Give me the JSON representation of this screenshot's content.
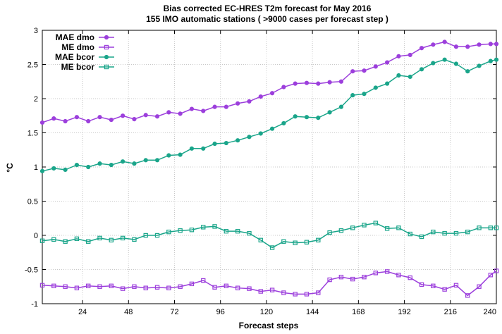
{
  "chart_data": {
    "type": "line",
    "title": "Bias corrected EC-HRES T2m forecast for May 2016",
    "subtitle": "155 IMO automatic stations ( >9000 cases per forecast step )",
    "xlabel": "Forecast steps",
    "ylabel": "°C",
    "xlim": [
      3,
      240
    ],
    "ylim": [
      -1,
      3
    ],
    "x_ticks": [
      24,
      48,
      72,
      96,
      120,
      144,
      168,
      192,
      216,
      240
    ],
    "y_ticks": [
      -1,
      -0.5,
      0,
      0.5,
      1,
      1.5,
      2,
      2.5,
      3
    ],
    "grid": true,
    "legend_position": "top-left",
    "x": [
      3,
      9,
      15,
      21,
      27,
      33,
      39,
      45,
      51,
      57,
      63,
      69,
      75,
      81,
      87,
      93,
      99,
      105,
      111,
      117,
      123,
      129,
      135,
      141,
      147,
      153,
      159,
      165,
      171,
      177,
      183,
      189,
      195,
      201,
      207,
      213,
      219,
      225,
      231,
      237,
      240
    ],
    "series": [
      {
        "name": "MAE dmo",
        "color": "#9c3fdc",
        "marker": "circle",
        "values": [
          1.65,
          1.71,
          1.67,
          1.73,
          1.67,
          1.73,
          1.69,
          1.75,
          1.7,
          1.76,
          1.74,
          1.8,
          1.78,
          1.85,
          1.82,
          1.88,
          1.88,
          1.93,
          1.96,
          2.03,
          2.08,
          2.17,
          2.22,
          2.23,
          2.22,
          2.24,
          2.25,
          2.4,
          2.41,
          2.47,
          2.53,
          2.62,
          2.64,
          2.74,
          2.79,
          2.83,
          2.76,
          2.76,
          2.79,
          2.8,
          2.8
        ]
      },
      {
        "name": "ME dmo",
        "color": "#9c3fdc",
        "marker": "square",
        "values": [
          -0.73,
          -0.74,
          -0.75,
          -0.77,
          -0.74,
          -0.75,
          -0.74,
          -0.78,
          -0.75,
          -0.77,
          -0.76,
          -0.77,
          -0.75,
          -0.71,
          -0.66,
          -0.76,
          -0.74,
          -0.77,
          -0.78,
          -0.82,
          -0.8,
          -0.84,
          -0.86,
          -0.86,
          -0.84,
          -0.65,
          -0.61,
          -0.64,
          -0.61,
          -0.55,
          -0.53,
          -0.58,
          -0.62,
          -0.72,
          -0.74,
          -0.79,
          -0.73,
          -0.88,
          -0.75,
          -0.58,
          -0.52
        ]
      },
      {
        "name": "MAE bcor",
        "color": "#1aa58a",
        "marker": "circle",
        "values": [
          0.94,
          0.98,
          0.96,
          1.03,
          1.0,
          1.05,
          1.03,
          1.08,
          1.05,
          1.1,
          1.1,
          1.17,
          1.18,
          1.27,
          1.27,
          1.34,
          1.35,
          1.39,
          1.44,
          1.49,
          1.56,
          1.64,
          1.74,
          1.73,
          1.72,
          1.8,
          1.88,
          2.05,
          2.07,
          2.16,
          2.22,
          2.34,
          2.32,
          2.43,
          2.52,
          2.57,
          2.51,
          2.4,
          2.48,
          2.55,
          2.57
        ]
      },
      {
        "name": "ME bcor",
        "color": "#1aa58a",
        "marker": "square",
        "values": [
          -0.08,
          -0.06,
          -0.09,
          -0.05,
          -0.09,
          -0.04,
          -0.07,
          -0.04,
          -0.06,
          0.0,
          0.0,
          0.05,
          0.07,
          0.08,
          0.12,
          0.13,
          0.06,
          0.06,
          0.03,
          -0.07,
          -0.18,
          -0.09,
          -0.11,
          -0.1,
          -0.07,
          0.04,
          0.07,
          0.11,
          0.15,
          0.18,
          0.1,
          0.11,
          0.02,
          -0.02,
          0.05,
          0.03,
          0.03,
          0.05,
          0.11,
          0.11,
          0.11
        ]
      }
    ]
  }
}
